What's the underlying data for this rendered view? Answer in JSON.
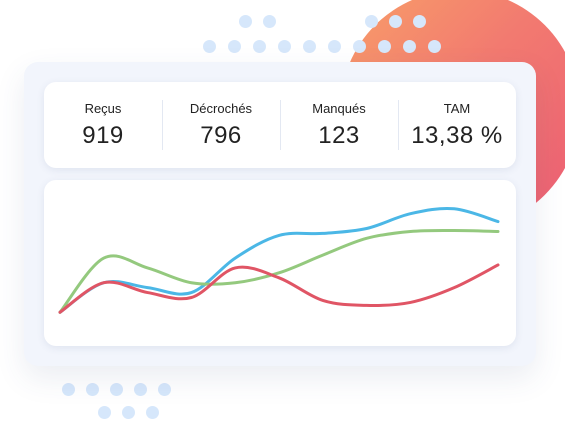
{
  "stats": [
    {
      "label": "Reçus",
      "value": "919"
    },
    {
      "label": "Décrochés",
      "value": "796"
    },
    {
      "label": "Manqués",
      "value": "123"
    },
    {
      "label": "TAM",
      "value": "13,38 %"
    }
  ],
  "chart_data": {
    "type": "line",
    "title": "",
    "xlabel": "",
    "ylabel": "",
    "grid": false,
    "x": [
      0,
      1,
      2,
      3,
      4,
      5,
      6,
      7,
      8,
      9,
      10
    ],
    "series": [
      {
        "color": "#4bb7e6",
        "values": [
          0.0,
          0.3,
          0.25,
          0.2,
          0.55,
          0.78,
          0.8,
          0.85,
          1.0,
          1.05,
          0.92
        ]
      },
      {
        "color": "#94c97e",
        "values": [
          0.0,
          0.55,
          0.45,
          0.3,
          0.3,
          0.4,
          0.58,
          0.75,
          0.82,
          0.83,
          0.82
        ]
      },
      {
        "color": "#e05565",
        "values": [
          0.0,
          0.3,
          0.2,
          0.15,
          0.45,
          0.35,
          0.12,
          0.07,
          0.1,
          0.25,
          0.48
        ]
      }
    ],
    "ylim": [
      -0.2,
      1.2
    ],
    "colors": {
      "accent_gradient_start": "#f8a068",
      "accent_gradient_end": "#ec5d74",
      "dots": "#d6e7fb"
    }
  }
}
